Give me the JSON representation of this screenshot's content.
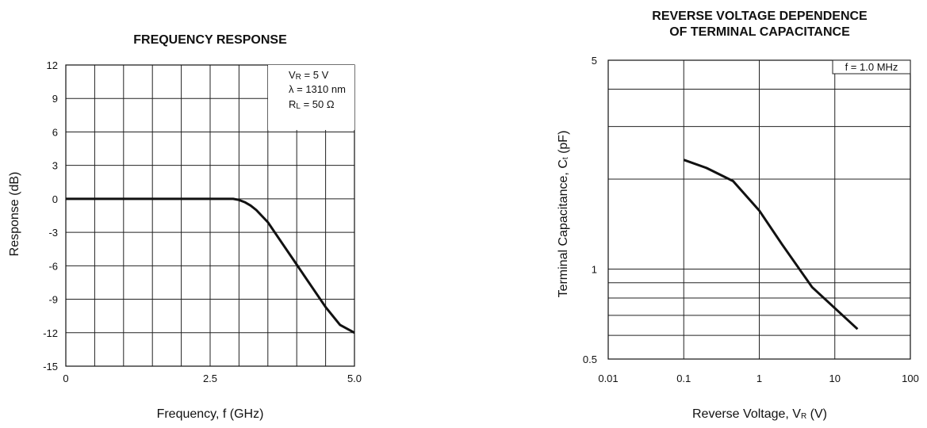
{
  "colors": {
    "ink": "#111111",
    "grid": "#222222",
    "curve": "#111111"
  },
  "chart_data": [
    {
      "type": "line",
      "title": "FREQUENCY RESPONSE",
      "xlabel": "Frequency, f (GHz)",
      "ylabel": "Response (dB)",
      "xlim": [
        0,
        5.0
      ],
      "ylim": [
        -15,
        12
      ],
      "x_ticks": [
        0,
        2.5,
        5.0
      ],
      "x_tick_labels": [
        "0",
        "2.5",
        "5.0"
      ],
      "y_ticks": [
        12,
        9,
        6,
        3,
        0,
        -3,
        -6,
        -9,
        -12,
        -15
      ],
      "y_tick_labels": [
        "12",
        "9",
        "6",
        "3",
        "0",
        "-3",
        "-6",
        "-9",
        "-12",
        "-15"
      ],
      "grid": true,
      "annotation": {
        "vr_main": "V",
        "vr_sub": "R",
        "vr_rest": " = 5 V",
        "lambda": "λ = 1310 nm",
        "rl_main": "R",
        "rl_sub": "L",
        "rl_rest": " = 50 Ω"
      },
      "series": [
        {
          "x": [
            0,
            0.5,
            1.0,
            1.5,
            2.0,
            2.5,
            2.9,
            3.0,
            3.1,
            3.2,
            3.3,
            3.5,
            3.75,
            4.0,
            4.25,
            4.5,
            4.75,
            5.0
          ],
          "y": [
            0,
            0,
            0,
            0,
            0,
            0,
            0,
            -0.1,
            -0.3,
            -0.6,
            -1.0,
            -2.1,
            -4.0,
            -5.9,
            -7.8,
            -9.7,
            -11.3,
            -12.0
          ]
        }
      ]
    },
    {
      "type": "line",
      "title_line1": "REVERSE VOLTAGE DEPENDENCE",
      "title_line2": "OF TERMINAL CAPACITANCE",
      "xlabel_main": "Reverse Voltage, V",
      "xlabel_sub": "R",
      "xlabel_rest": " (V)",
      "ylabel_main": "Terminal Capacitance, C",
      "ylabel_sub": "t",
      "ylabel_rest": " (pF)",
      "x_scale": "log",
      "y_scale": "log",
      "xlim": [
        0.01,
        100
      ],
      "ylim": [
        0.5,
        5
      ],
      "x_ticks": [
        0.01,
        0.1,
        1,
        10,
        100
      ],
      "x_tick_labels": [
        "0.01",
        "0.1",
        "1",
        "10",
        "100"
      ],
      "y_tick_values": [
        5,
        1,
        0.5
      ],
      "y_tick_labels": [
        "5",
        "1",
        "0.5"
      ],
      "grid": true,
      "annotation": "f = 1.0 MHz",
      "series": [
        {
          "x": [
            0.1,
            0.2,
            0.45,
            1,
            2,
            5,
            10,
            20
          ],
          "y": [
            2.32,
            2.18,
            1.97,
            1.57,
            1.21,
            0.87,
            0.74,
            0.63
          ]
        }
      ]
    }
  ]
}
